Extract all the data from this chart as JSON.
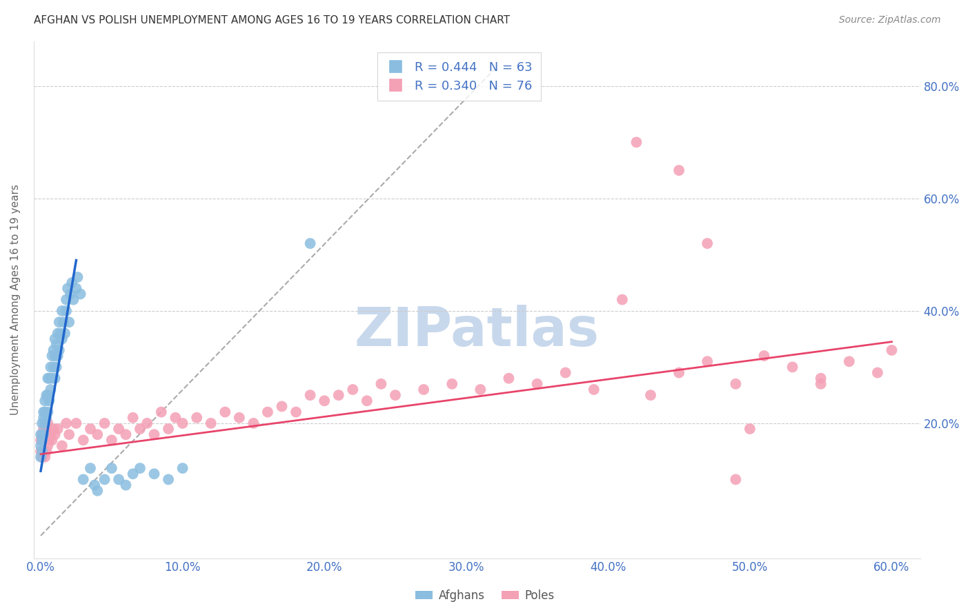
{
  "title": "AFGHAN VS POLISH UNEMPLOYMENT AMONG AGES 16 TO 19 YEARS CORRELATION CHART",
  "source": "Source: ZipAtlas.com",
  "xlim": [
    -0.005,
    0.62
  ],
  "ylim": [
    -0.04,
    0.88
  ],
  "x_ticks": [
    0.0,
    0.1,
    0.2,
    0.3,
    0.4,
    0.5,
    0.6
  ],
  "x_labels": [
    "0.0%",
    "10.0%",
    "20.0%",
    "30.0%",
    "40.0%",
    "50.0%",
    "60.0%"
  ],
  "y_ticks": [
    0.0,
    0.2,
    0.4,
    0.6,
    0.8
  ],
  "y_labels_right": [
    "",
    "20.0%",
    "40.0%",
    "60.0%",
    "80.0%"
  ],
  "afghan_R": 0.444,
  "afghan_N": 63,
  "polish_R": 0.34,
  "polish_N": 76,
  "afghan_color": "#8ABDE0",
  "afghan_line_color": "#2166CC",
  "polish_color": "#F4A0B5",
  "polish_line_color": "#E8446A",
  "tick_label_color": "#4472C4",
  "grid_color": "#CCCCCC",
  "watermark_color": "#C8D8EC",
  "background_color": "#FFFFFF",
  "dashed_line_x": [
    0.0,
    0.32
  ],
  "dashed_line_y": [
    0.0,
    0.83
  ],
  "afghan_line_x": [
    0.0,
    0.025
  ],
  "afghan_line_y": [
    0.115,
    0.49
  ],
  "polish_line_x": [
    0.0,
    0.6
  ],
  "polish_line_y": [
    0.145,
    0.345
  ],
  "afghan_x": [
    0.0,
    0.0,
    0.0,
    0.001,
    0.001,
    0.001,
    0.002,
    0.002,
    0.002,
    0.003,
    0.003,
    0.003,
    0.004,
    0.004,
    0.005,
    0.005,
    0.005,
    0.006,
    0.006,
    0.007,
    0.007,
    0.008,
    0.008,
    0.009,
    0.009,
    0.01,
    0.01,
    0.01,
    0.011,
    0.011,
    0.012,
    0.012,
    0.013,
    0.013,
    0.014,
    0.015,
    0.015,
    0.016,
    0.017,
    0.018,
    0.018,
    0.019,
    0.02,
    0.021,
    0.022,
    0.023,
    0.025,
    0.026,
    0.028,
    0.03,
    0.035,
    0.038,
    0.04,
    0.045,
    0.05,
    0.055,
    0.06,
    0.065,
    0.07,
    0.08,
    0.09,
    0.1,
    0.19
  ],
  "afghan_y": [
    0.14,
    0.16,
    0.18,
    0.15,
    0.17,
    0.2,
    0.18,
    0.21,
    0.22,
    0.2,
    0.22,
    0.24,
    0.21,
    0.25,
    0.22,
    0.25,
    0.28,
    0.24,
    0.28,
    0.26,
    0.3,
    0.28,
    0.32,
    0.3,
    0.33,
    0.28,
    0.32,
    0.35,
    0.3,
    0.34,
    0.32,
    0.36,
    0.33,
    0.38,
    0.36,
    0.35,
    0.4,
    0.38,
    0.36,
    0.4,
    0.42,
    0.44,
    0.38,
    0.43,
    0.45,
    0.42,
    0.44,
    0.46,
    0.43,
    0.1,
    0.12,
    0.09,
    0.08,
    0.1,
    0.12,
    0.1,
    0.09,
    0.11,
    0.12,
    0.11,
    0.1,
    0.12,
    0.52
  ],
  "polish_x": [
    0.0,
    0.0,
    0.001,
    0.001,
    0.002,
    0.002,
    0.003,
    0.003,
    0.004,
    0.004,
    0.005,
    0.005,
    0.006,
    0.007,
    0.008,
    0.009,
    0.01,
    0.012,
    0.015,
    0.018,
    0.02,
    0.025,
    0.03,
    0.035,
    0.04,
    0.045,
    0.05,
    0.055,
    0.06,
    0.065,
    0.07,
    0.075,
    0.08,
    0.085,
    0.09,
    0.095,
    0.1,
    0.11,
    0.12,
    0.13,
    0.14,
    0.15,
    0.16,
    0.17,
    0.18,
    0.19,
    0.2,
    0.21,
    0.22,
    0.23,
    0.24,
    0.25,
    0.27,
    0.29,
    0.31,
    0.33,
    0.35,
    0.37,
    0.39,
    0.41,
    0.43,
    0.45,
    0.47,
    0.49,
    0.51,
    0.53,
    0.55,
    0.57,
    0.59,
    0.6,
    0.42,
    0.45,
    0.47,
    0.49,
    0.5,
    0.55
  ],
  "polish_y": [
    0.15,
    0.17,
    0.14,
    0.18,
    0.15,
    0.19,
    0.14,
    0.18,
    0.15,
    0.19,
    0.16,
    0.2,
    0.17,
    0.18,
    0.17,
    0.19,
    0.18,
    0.19,
    0.16,
    0.2,
    0.18,
    0.2,
    0.17,
    0.19,
    0.18,
    0.2,
    0.17,
    0.19,
    0.18,
    0.21,
    0.19,
    0.2,
    0.18,
    0.22,
    0.19,
    0.21,
    0.2,
    0.21,
    0.2,
    0.22,
    0.21,
    0.2,
    0.22,
    0.23,
    0.22,
    0.25,
    0.24,
    0.25,
    0.26,
    0.24,
    0.27,
    0.25,
    0.26,
    0.27,
    0.26,
    0.28,
    0.27,
    0.29,
    0.26,
    0.42,
    0.25,
    0.29,
    0.31,
    0.27,
    0.32,
    0.3,
    0.28,
    0.31,
    0.29,
    0.33,
    0.7,
    0.65,
    0.52,
    0.1,
    0.19,
    0.27
  ]
}
